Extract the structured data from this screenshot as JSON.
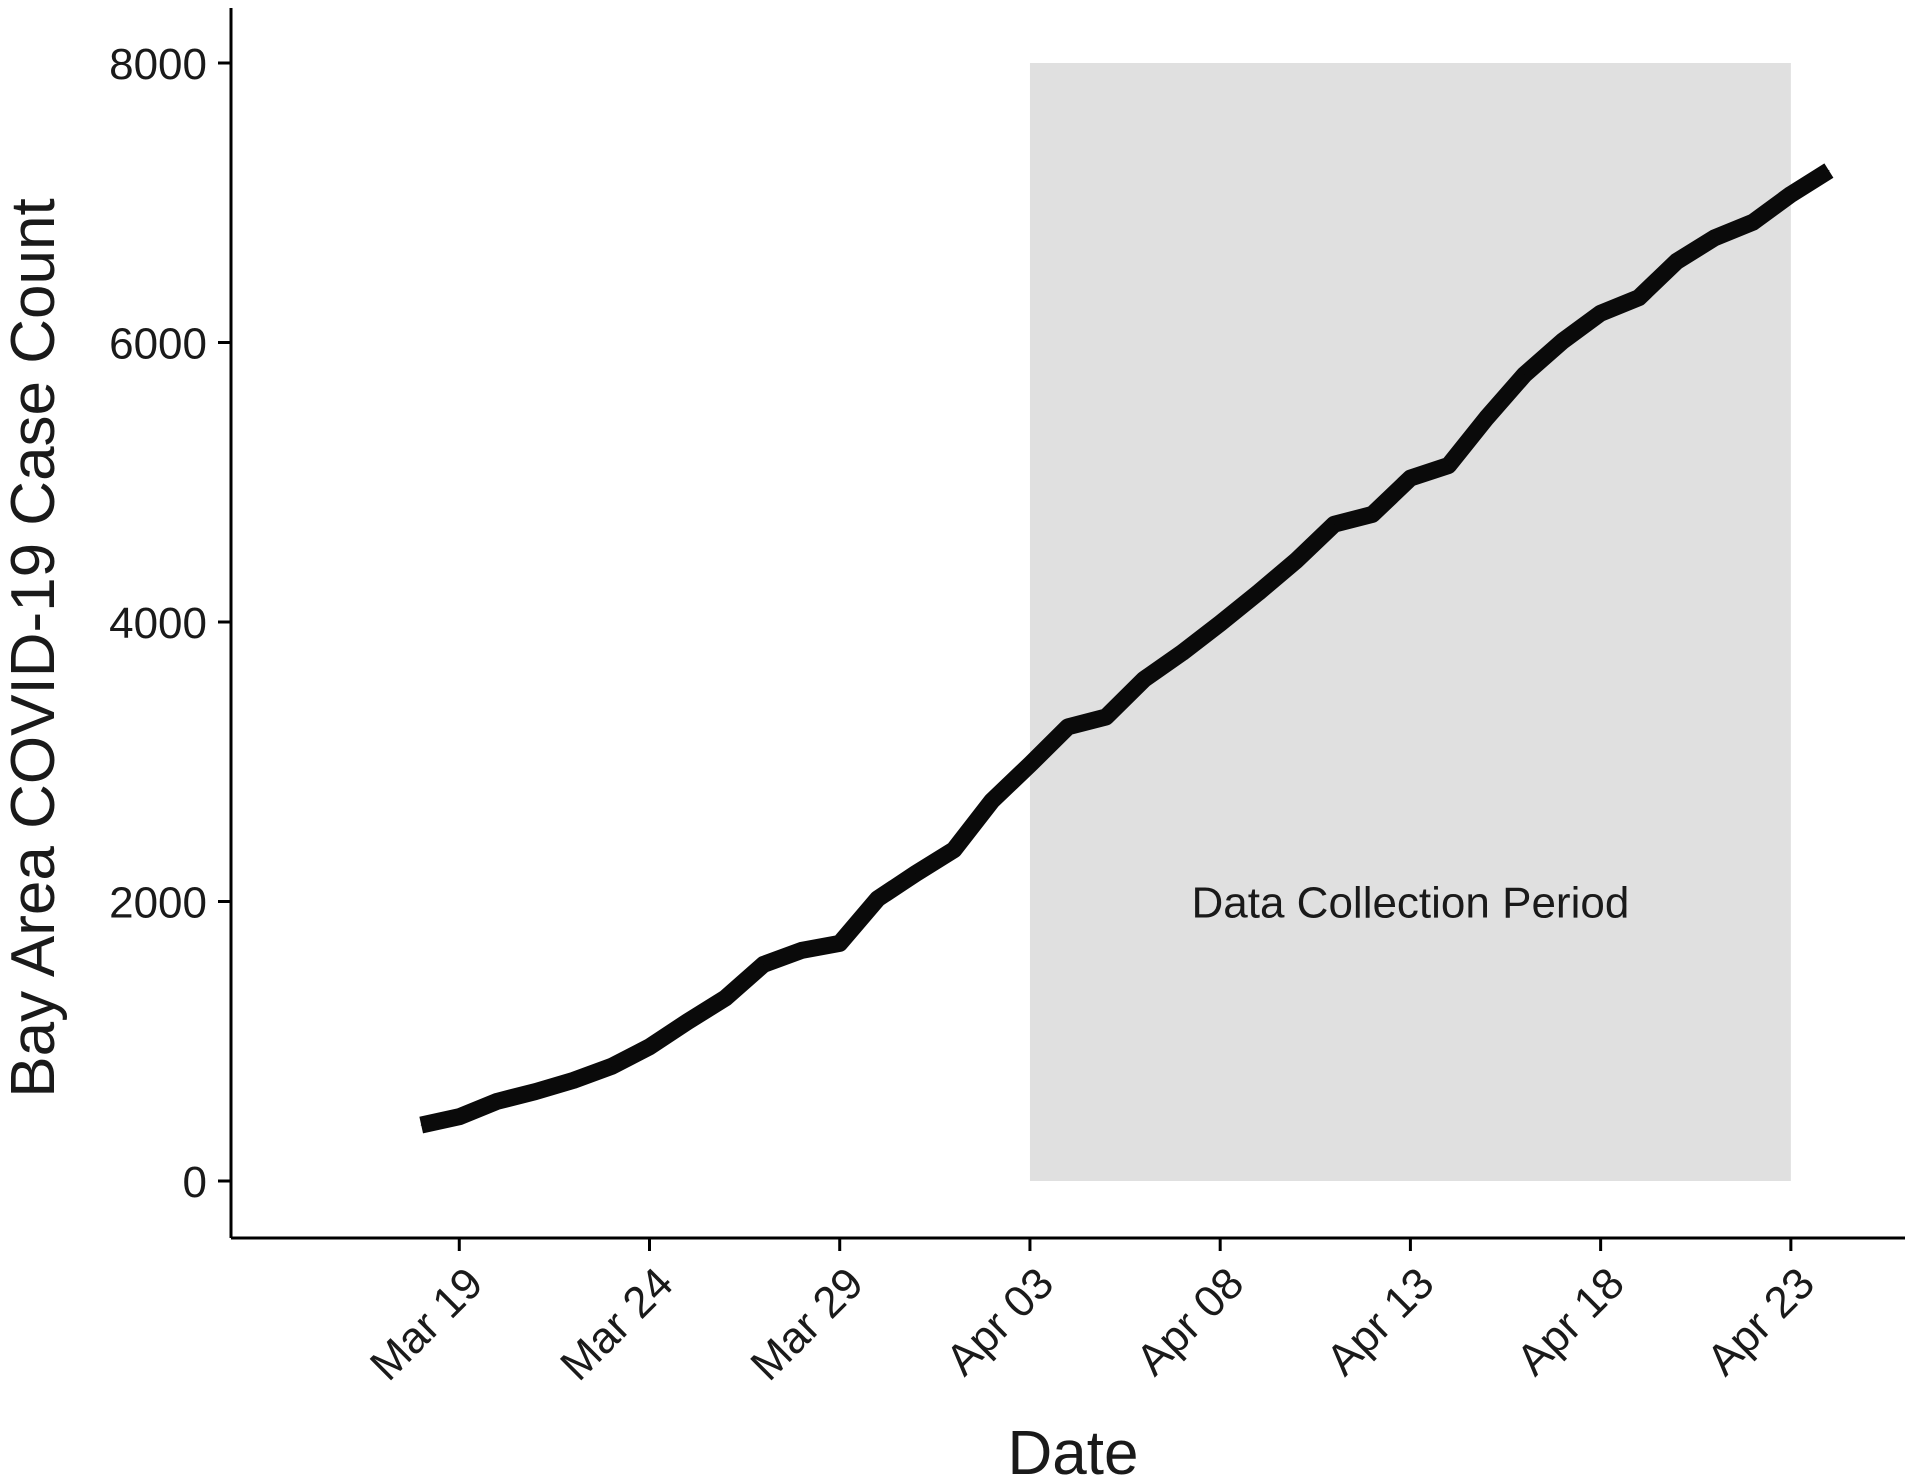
{
  "chart_data": {
    "type": "line",
    "xlabel": "Date",
    "ylabel": "Bay Area COVID-19 Case Count",
    "ylim": [
      0,
      8000
    ],
    "xlim": [
      "2020-03-13",
      "2020-04-26"
    ],
    "grid": false,
    "legend": "none",
    "y_ticks": [
      0,
      2000,
      4000,
      6000,
      8000
    ],
    "x_ticks": [
      {
        "date": "2020-03-19",
        "label": "Mar 19"
      },
      {
        "date": "2020-03-24",
        "label": "Mar 24"
      },
      {
        "date": "2020-03-29",
        "label": "Mar 29"
      },
      {
        "date": "2020-04-03",
        "label": "Apr 03"
      },
      {
        "date": "2020-04-08",
        "label": "Apr 08"
      },
      {
        "date": "2020-04-13",
        "label": "Apr 13"
      },
      {
        "date": "2020-04-18",
        "label": "Apr 18"
      },
      {
        "date": "2020-04-23",
        "label": "Apr 23"
      }
    ],
    "shaded_region": {
      "label": "Data Collection Period",
      "x_start": "2020-04-03",
      "x_end": "2020-04-23",
      "y_start": 0,
      "y_end": 8000,
      "fill": "#e0e0e0"
    },
    "series": [
      {
        "color": "#0a0a0a",
        "x": [
          "2020-03-18",
          "2020-03-19",
          "2020-03-20",
          "2020-03-21",
          "2020-03-22",
          "2020-03-23",
          "2020-03-24",
          "2020-03-25",
          "2020-03-26",
          "2020-03-27",
          "2020-03-28",
          "2020-03-29",
          "2020-03-30",
          "2020-03-31",
          "2020-04-01",
          "2020-04-02",
          "2020-04-03",
          "2020-04-04",
          "2020-04-05",
          "2020-04-06",
          "2020-04-07",
          "2020-04-08",
          "2020-04-09",
          "2020-04-10",
          "2020-04-11",
          "2020-04-12",
          "2020-04-13",
          "2020-04-14",
          "2020-04-15",
          "2020-04-16",
          "2020-04-17",
          "2020-04-18",
          "2020-04-19",
          "2020-04-20",
          "2020-04-21",
          "2020-04-22",
          "2020-04-23",
          "2020-04-24"
        ],
        "y": [
          400,
          460,
          570,
          640,
          720,
          820,
          960,
          1140,
          1310,
          1550,
          1650,
          1700,
          2020,
          2200,
          2370,
          2720,
          2980,
          3250,
          3320,
          3590,
          3780,
          3990,
          4210,
          4440,
          4700,
          4770,
          5030,
          5120,
          5460,
          5770,
          6010,
          6210,
          6320,
          6580,
          6750,
          6860,
          7060,
          7230
        ]
      }
    ]
  }
}
